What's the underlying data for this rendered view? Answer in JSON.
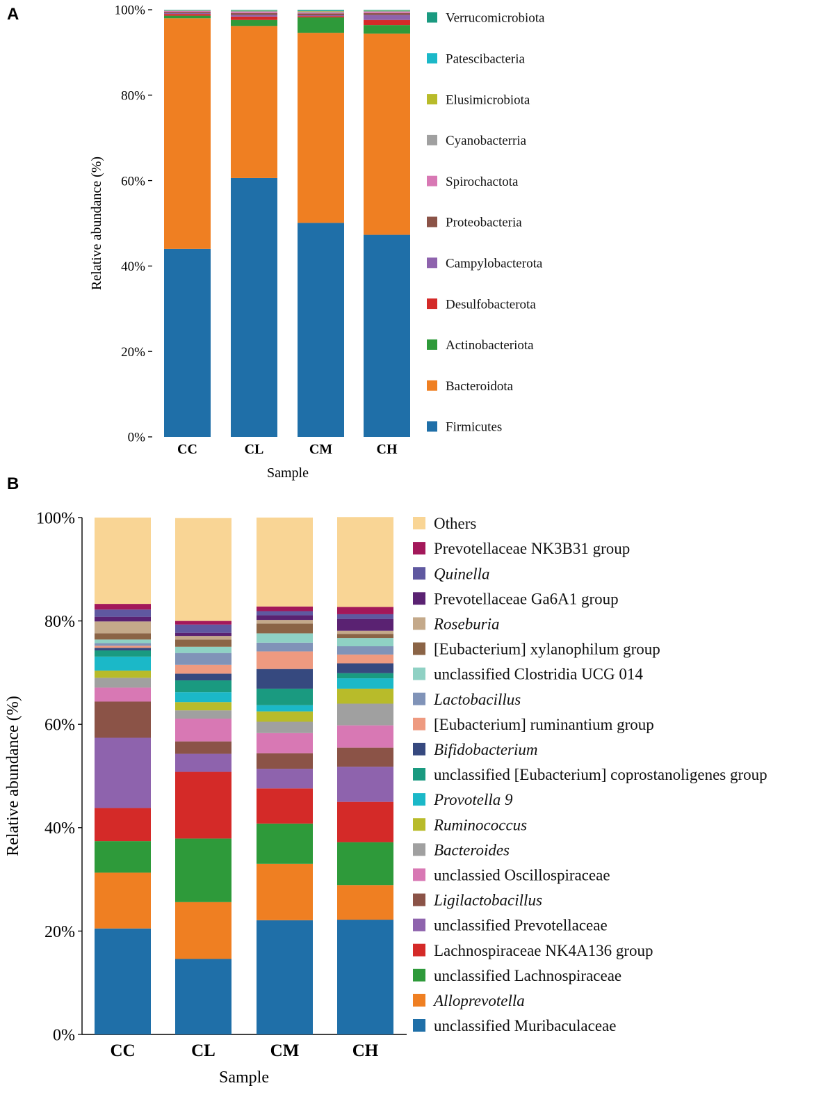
{
  "panels": [
    {
      "label": "A",
      "chart_data": {
        "type": "bar",
        "stacked": true,
        "categories": [
          "CC",
          "CL",
          "CM",
          "CH"
        ],
        "xlabel": "Sample",
        "ylabel": "Relative abundance (%)",
        "ylim": [
          0,
          100
        ],
        "yticks": [
          "0%",
          "20%",
          "40%",
          "60%",
          "80%",
          "100%"
        ],
        "legend_position": "right",
        "series": [
          {
            "name": "Firmicutes",
            "color": "#1f6fa8",
            "values": [
              44.0,
              60.6,
              50.1,
              47.3
            ]
          },
          {
            "name": "Bacteroidota",
            "color": "#ef7f22",
            "values": [
              54.0,
              35.6,
              44.5,
              47.1
            ]
          },
          {
            "name": "Actinobacteriota",
            "color": "#2e9a3a",
            "values": [
              0.6,
              1.4,
              3.6,
              2.0
            ]
          },
          {
            "name": "Desulfobacterota",
            "color": "#d42a28",
            "values": [
              0.4,
              0.8,
              0.3,
              1.2
            ]
          },
          {
            "name": "Campylobacterota",
            "color": "#8e63ad",
            "values": [
              0.2,
              0.4,
              0.2,
              1.2
            ]
          },
          {
            "name": "Proteobacteria",
            "color": "#8b5347",
            "values": [
              0.3,
              0.4,
              0.4,
              0.4
            ]
          },
          {
            "name": "Spirochactota",
            "color": "#d878b4",
            "values": [
              0.2,
              0.3,
              0.2,
              0.3
            ]
          },
          {
            "name": "Cyanobacterria",
            "color": "#a0a0a0",
            "values": [
              0.1,
              0.2,
              0.3,
              0.2
            ]
          },
          {
            "name": "Elusimicrobiota",
            "color": "#b8bb2a",
            "values": [
              0.05,
              0.1,
              0.1,
              0.1
            ]
          },
          {
            "name": "Patescibacteria",
            "color": "#1bb8c8",
            "values": [
              0.05,
              0.1,
              0.1,
              0.1
            ]
          },
          {
            "name": "Verrucomicrobiota",
            "color": "#1a9a80",
            "values": [
              0.1,
              0.1,
              0.2,
              0.1
            ]
          }
        ]
      }
    },
    {
      "label": "B",
      "chart_data": {
        "type": "bar",
        "stacked": true,
        "categories": [
          "CC",
          "CL",
          "CM",
          "CH"
        ],
        "xlabel": "Sample",
        "ylabel": "Relative abundance (%)",
        "ylim": [
          0,
          100
        ],
        "yticks": [
          "0%",
          "20%",
          "40%",
          "60%",
          "80%",
          "100%"
        ],
        "legend_position": "right",
        "series": [
          {
            "name": "unclassified Muribaculaceae",
            "italic": false,
            "color": "#1f6fa8",
            "values": [
              20.5,
              14.6,
              22.1,
              22.2
            ]
          },
          {
            "name": "Alloprevotella",
            "italic": true,
            "color": "#ef7f22",
            "values": [
              10.8,
              11.0,
              10.9,
              6.7
            ]
          },
          {
            "name": "unclassified  Lachnospiraceae",
            "italic": false,
            "color": "#2e9a3a",
            "values": [
              6.1,
              12.3,
              7.8,
              8.3
            ]
          },
          {
            "name": "Lachnospiraceae NK4A136 group",
            "italic": false,
            "color": "#d42a28",
            "values": [
              6.4,
              12.9,
              6.8,
              7.8
            ]
          },
          {
            "name": "unclassified Prevotellaceae",
            "italic": false,
            "color": "#8e63ad",
            "values": [
              13.6,
              3.5,
              3.8,
              6.8
            ]
          },
          {
            "name": "Ligilactobacillus",
            "italic": true,
            "color": "#8b5347",
            "values": [
              7.0,
              2.4,
              3.0,
              3.7
            ]
          },
          {
            "name": "unclassied Oscillospiraceae",
            "italic": false,
            "color": "#d878b4",
            "values": [
              2.7,
              4.4,
              3.9,
              4.3
            ]
          },
          {
            "name": "Bacteroides",
            "italic": true,
            "color": "#a0a0a0",
            "values": [
              1.9,
              1.6,
              2.2,
              4.2
            ]
          },
          {
            "name": "Ruminococcus",
            "italic": true,
            "color": "#b8bb2a",
            "values": [
              1.4,
              1.6,
              2.0,
              2.9
            ]
          },
          {
            "name": "Provotella 9",
            "italic": true,
            "color": "#1bb8c8",
            "values": [
              2.7,
              1.9,
              1.2,
              2.0
            ]
          },
          {
            "name": "unclassified [Eubacterium] coprostanoligenes group",
            "italic": false,
            "color": "#1a9a80",
            "values": [
              1.2,
              2.3,
              3.2,
              1.0
            ]
          },
          {
            "name": "Bifidobacterium",
            "italic": true,
            "color": "#36497f",
            "values": [
              0.5,
              1.3,
              3.8,
              1.9
            ]
          },
          {
            "name": "[Eubacterium] ruminantium group",
            "italic": false,
            "color": "#ee9a80",
            "values": [
              0.4,
              1.7,
              3.4,
              1.7
            ]
          },
          {
            "name": "Lactobacillus",
            "italic": true,
            "color": "#8093b8",
            "values": [
              0.5,
              2.3,
              1.7,
              1.6
            ]
          },
          {
            "name": "unclassified Clostridia UCG 014",
            "italic": false,
            "color": "#8fd1c4",
            "values": [
              0.7,
              1.2,
              1.8,
              1.6
            ]
          },
          {
            "name": "[Eubacterium] xylanophilum group",
            "italic": false,
            "color": "#8b6446",
            "values": [
              1.2,
              1.4,
              1.9,
              0.8
            ]
          },
          {
            "name": "Roseburia",
            "italic": true,
            "color": "#c4a98a",
            "values": [
              2.3,
              0.7,
              0.7,
              0.6
            ]
          },
          {
            "name": "Prevotellaceae Ga6A1 group",
            "italic": false,
            "color": "#5a2272",
            "values": [
              0.9,
              0.6,
              0.9,
              2.3
            ]
          },
          {
            "name": "Quinella",
            "italic": true,
            "color": "#5f58a0",
            "values": [
              1.4,
              1.6,
              0.8,
              0.9
            ]
          },
          {
            "name": "Prevotellaceae NK3B31 group",
            "italic": false,
            "color": "#a3185a",
            "values": [
              1.1,
              0.7,
              0.9,
              1.4
            ]
          },
          {
            "name": "Others",
            "italic": false,
            "color": "#f9d595",
            "values": [
              16.7,
              19.9,
              17.2,
              17.4
            ]
          }
        ]
      }
    }
  ]
}
